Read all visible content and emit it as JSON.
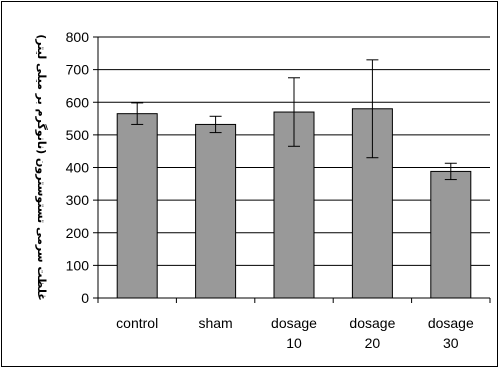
{
  "chart_data": {
    "type": "bar",
    "ylabel": "غلظت سرمی تستوسترون (نانوگرم بر میلی لیتر)",
    "ylim": [
      0,
      800
    ],
    "yticks": [
      0,
      100,
      200,
      300,
      400,
      500,
      600,
      700,
      800
    ],
    "grid": true,
    "categories": [
      [
        "control"
      ],
      [
        "sham"
      ],
      [
        "dosage",
        "10"
      ],
      [
        "dosage",
        "20"
      ],
      [
        "dosage",
        "30"
      ]
    ],
    "values": [
      565,
      532,
      570,
      580,
      388
    ],
    "errors": [
      33,
      25,
      105,
      150,
      25
    ],
    "bar_color": "#999999",
    "bar_edge_color": "#000000"
  }
}
